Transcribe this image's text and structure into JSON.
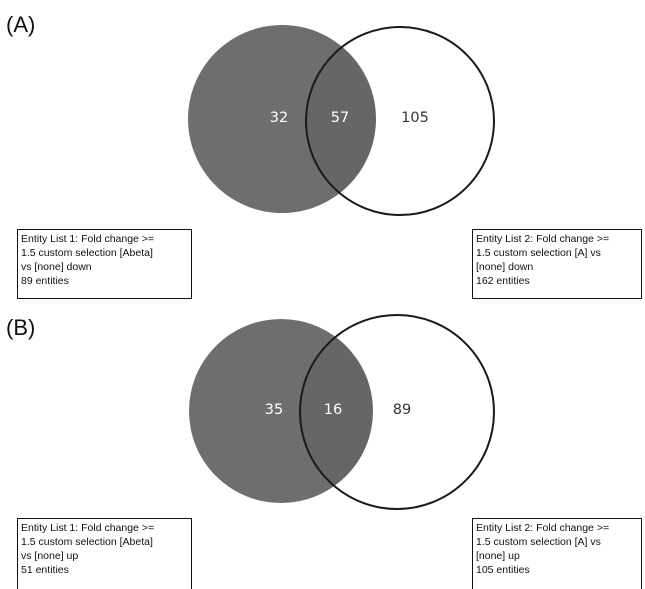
{
  "panels": [
    {
      "label": "(A)",
      "counts": {
        "left_only": "32",
        "overlap": "57",
        "right_only": "105"
      },
      "list1": {
        "lines": [
          "Entity List 1: Fold change >=",
          "1.5 custom selection [Abeta]",
          "vs [none] down",
          "89 entities"
        ]
      },
      "list2": {
        "lines": [
          "Entity List 2: Fold change >=",
          "1.5 custom selection [A] vs",
          "[none] down",
          "162 entities"
        ]
      }
    },
    {
      "label": "(B)",
      "counts": {
        "left_only": "35",
        "overlap": "16",
        "right_only": "89"
      },
      "list1": {
        "lines": [
          "Entity List 1: Fold change >=",
          "1.5 custom selection [Abeta]",
          "vs [none] up",
          "51 entities"
        ]
      },
      "list2": {
        "lines": [
          "Entity List 2: Fold change >=",
          "1.5 custom selection [A] vs",
          "[none] up",
          "105 entities"
        ]
      }
    }
  ],
  "colors": {
    "set1_fill": "#6e6e6e",
    "overlap_fill": "#666666",
    "set2_stroke": "#1a1a1a",
    "label_on_dark": "#ffffff",
    "label_on_light": "#333333"
  }
}
